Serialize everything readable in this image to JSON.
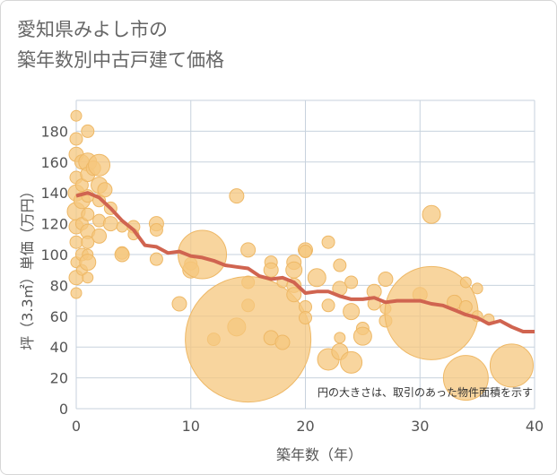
{
  "chart_data": {
    "type": "scatter",
    "title_lines": [
      "愛知県みよし市の",
      "築年数別中古戸建て価格"
    ],
    "xlabel": "築年数（年）",
    "ylabel": "坪（3.3㎡）単価（万円）",
    "xlim": [
      0,
      40
    ],
    "ylim": [
      0,
      200
    ],
    "x_ticks": [
      0,
      10,
      20,
      30,
      40
    ],
    "y_ticks": [
      0,
      20,
      40,
      60,
      80,
      100,
      120,
      140,
      160,
      180
    ],
    "grid": true,
    "annotation": "円の大きさは、取引のあった物件面積を示す",
    "colors": {
      "bubble": "#f5c77e",
      "bubble_stroke": "#eeb866",
      "trend": "#d06450",
      "grid": "#c7d2dd"
    },
    "bubbles": [
      {
        "x": 0,
        "y": 190,
        "r": 6
      },
      {
        "x": 0,
        "y": 175,
        "r": 7
      },
      {
        "x": 0,
        "y": 165,
        "r": 8
      },
      {
        "x": 0,
        "y": 150,
        "r": 7
      },
      {
        "x": 0,
        "y": 140,
        "r": 9
      },
      {
        "x": 0,
        "y": 128,
        "r": 10
      },
      {
        "x": 0,
        "y": 118,
        "r": 8
      },
      {
        "x": 0,
        "y": 108,
        "r": 7
      },
      {
        "x": 0,
        "y": 95,
        "r": 6
      },
      {
        "x": 0,
        "y": 85,
        "r": 8
      },
      {
        "x": 0,
        "y": 75,
        "r": 6
      },
      {
        "x": 0.5,
        "y": 160,
        "r": 8
      },
      {
        "x": 0.5,
        "y": 145,
        "r": 7
      },
      {
        "x": 0.5,
        "y": 135,
        "r": 9
      },
      {
        "x": 0.5,
        "y": 120,
        "r": 7
      },
      {
        "x": 0.5,
        "y": 100,
        "r": 7
      },
      {
        "x": 0.5,
        "y": 90,
        "r": 6
      },
      {
        "x": 1,
        "y": 180,
        "r": 7
      },
      {
        "x": 1,
        "y": 160,
        "r": 10
      },
      {
        "x": 1,
        "y": 152,
        "r": 8
      },
      {
        "x": 1,
        "y": 138,
        "r": 7
      },
      {
        "x": 1,
        "y": 126,
        "r": 7
      },
      {
        "x": 1,
        "y": 115,
        "r": 8
      },
      {
        "x": 1,
        "y": 108,
        "r": 7
      },
      {
        "x": 1,
        "y": 100,
        "r": 6
      },
      {
        "x": 1,
        "y": 95,
        "r": 9
      },
      {
        "x": 1,
        "y": 85,
        "r": 6
      },
      {
        "x": 1.5,
        "y": 156,
        "r": 8
      },
      {
        "x": 2,
        "y": 158,
        "r": 12
      },
      {
        "x": 2,
        "y": 145,
        "r": 9
      },
      {
        "x": 2,
        "y": 135,
        "r": 7
      },
      {
        "x": 2,
        "y": 122,
        "r": 7
      },
      {
        "x": 2,
        "y": 112,
        "r": 8
      },
      {
        "x": 2.5,
        "y": 142,
        "r": 8
      },
      {
        "x": 3,
        "y": 130,
        "r": 7
      },
      {
        "x": 3,
        "y": 120,
        "r": 8
      },
      {
        "x": 4,
        "y": 118,
        "r": 6
      },
      {
        "x": 4,
        "y": 101,
        "r": 7
      },
      {
        "x": 4,
        "y": 100,
        "r": 8
      },
      {
        "x": 5,
        "y": 118,
        "r": 7
      },
      {
        "x": 5,
        "y": 113,
        "r": 6
      },
      {
        "x": 7,
        "y": 120,
        "r": 8
      },
      {
        "x": 7,
        "y": 116,
        "r": 7
      },
      {
        "x": 7,
        "y": 97,
        "r": 7
      },
      {
        "x": 9,
        "y": 68,
        "r": 8
      },
      {
        "x": 10,
        "y": 94,
        "r": 7
      },
      {
        "x": 10,
        "y": 90,
        "r": 9
      },
      {
        "x": 11,
        "y": 100,
        "r": 27
      },
      {
        "x": 12,
        "y": 45,
        "r": 7
      },
      {
        "x": 14,
        "y": 138,
        "r": 8
      },
      {
        "x": 14,
        "y": 53,
        "r": 10
      },
      {
        "x": 15,
        "y": 103,
        "r": 8
      },
      {
        "x": 15,
        "y": 82,
        "r": 7
      },
      {
        "x": 15,
        "y": 67,
        "r": 7
      },
      {
        "x": 15,
        "y": 45,
        "r": 70
      },
      {
        "x": 17,
        "y": 95,
        "r": 7
      },
      {
        "x": 17,
        "y": 90,
        "r": 8
      },
      {
        "x": 17,
        "y": 46,
        "r": 8
      },
      {
        "x": 18,
        "y": 43,
        "r": 8
      },
      {
        "x": 18,
        "y": 82,
        "r": 6
      },
      {
        "x": 19,
        "y": 95,
        "r": 8
      },
      {
        "x": 19,
        "y": 90,
        "r": 9
      },
      {
        "x": 19,
        "y": 80,
        "r": 8
      },
      {
        "x": 19,
        "y": 74,
        "r": 8
      },
      {
        "x": 20,
        "y": 103,
        "r": 8
      },
      {
        "x": 20,
        "y": 102,
        "r": 7
      },
      {
        "x": 20,
        "y": 66,
        "r": 7
      },
      {
        "x": 20,
        "y": 59,
        "r": 7
      },
      {
        "x": 21,
        "y": 85,
        "r": 10
      },
      {
        "x": 22,
        "y": 108,
        "r": 7
      },
      {
        "x": 22,
        "y": 32,
        "r": 12
      },
      {
        "x": 22,
        "y": 67,
        "r": 7
      },
      {
        "x": 23,
        "y": 93,
        "r": 7
      },
      {
        "x": 23,
        "y": 78,
        "r": 8
      },
      {
        "x": 23,
        "y": 46,
        "r": 6
      },
      {
        "x": 23,
        "y": 37,
        "r": 9
      },
      {
        "x": 24,
        "y": 82,
        "r": 7
      },
      {
        "x": 24,
        "y": 63,
        "r": 9
      },
      {
        "x": 24,
        "y": 30,
        "r": 12
      },
      {
        "x": 25,
        "y": 52,
        "r": 7
      },
      {
        "x": 25,
        "y": 47,
        "r": 10
      },
      {
        "x": 26,
        "y": 76,
        "r": 8
      },
      {
        "x": 26,
        "y": 68,
        "r": 7
      },
      {
        "x": 27,
        "y": 84,
        "r": 8
      },
      {
        "x": 27,
        "y": 65,
        "r": 6
      },
      {
        "x": 27,
        "y": 57,
        "r": 7
      },
      {
        "x": 30,
        "y": 74,
        "r": 8
      },
      {
        "x": 31,
        "y": 126,
        "r": 10
      },
      {
        "x": 31,
        "y": 62,
        "r": 52
      },
      {
        "x": 33,
        "y": 69,
        "r": 8
      },
      {
        "x": 34,
        "y": 82,
        "r": 6
      },
      {
        "x": 34,
        "y": 66,
        "r": 7
      },
      {
        "x": 34,
        "y": 20,
        "r": 25
      },
      {
        "x": 35,
        "y": 78,
        "r": 6
      },
      {
        "x": 35,
        "y": 60,
        "r": 6
      },
      {
        "x": 36,
        "y": 58,
        "r": 6
      },
      {
        "x": 38,
        "y": 28,
        "r": 24
      }
    ],
    "trend": {
      "name": "",
      "x": [
        0,
        1,
        2,
        3,
        4,
        5,
        6,
        7,
        8,
        9,
        10,
        11,
        12,
        13,
        14,
        15,
        16,
        17,
        18,
        19,
        20,
        21,
        22,
        23,
        24,
        25,
        26,
        27,
        28,
        29,
        30,
        31,
        32,
        33,
        34,
        35,
        36,
        37,
        38,
        39,
        40
      ],
      "y": [
        138,
        140,
        137,
        130,
        122,
        116,
        106,
        105,
        101,
        102,
        99,
        98,
        96,
        93,
        92,
        91,
        86,
        84,
        85,
        82,
        75,
        76,
        76,
        73,
        71,
        71,
        72,
        69,
        70,
        70,
        70,
        68,
        67,
        64,
        61,
        59,
        55,
        57,
        53,
        50,
        50
      ]
    }
  }
}
